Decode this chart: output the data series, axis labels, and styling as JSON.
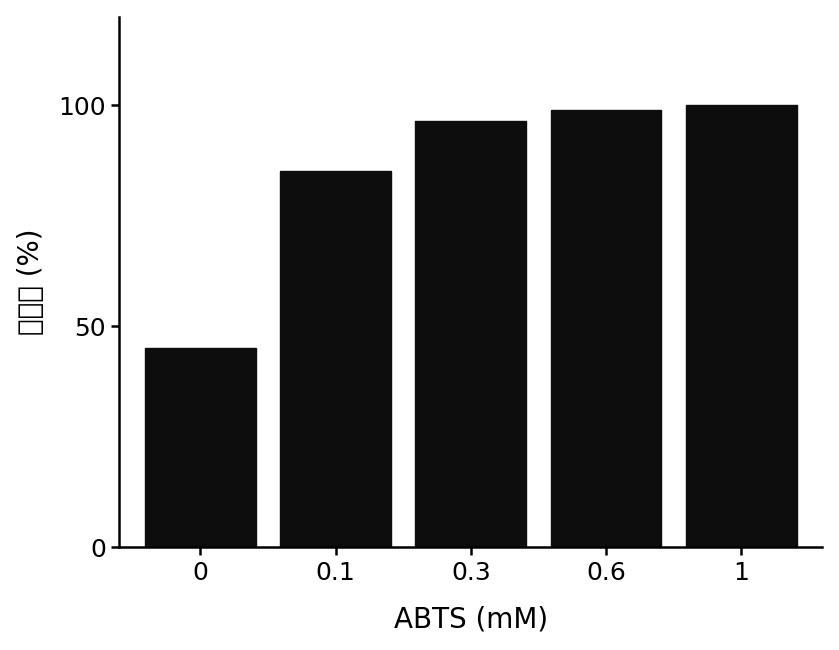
{
  "categories": [
    "0",
    "0.1",
    "0.3",
    "0.6",
    "1"
  ],
  "values": [
    45.0,
    85.0,
    96.5,
    99.0,
    100.0
  ],
  "bar_color": "#0d0d0d",
  "xlabel": "ABTS (mM)",
  "ylabel": "降解率 (%)",
  "ylim": [
    0,
    120
  ],
  "yticks": [
    0,
    50,
    100
  ],
  "bar_width": 0.82,
  "xlabel_fontsize": 20,
  "ylabel_fontsize": 20,
  "tick_fontsize": 18,
  "background_color": "#ffffff"
}
